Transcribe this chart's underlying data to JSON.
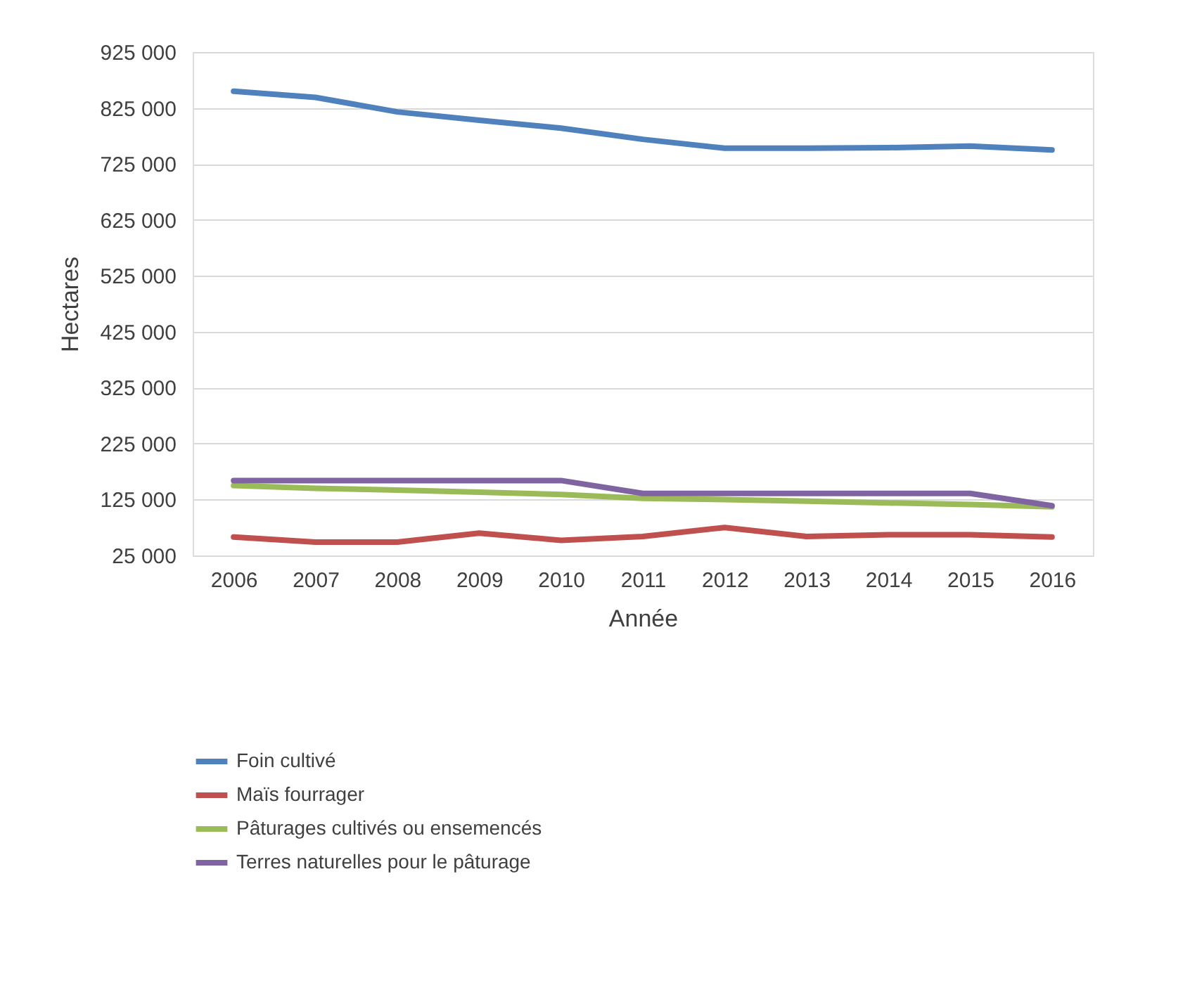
{
  "chart_data": {
    "type": "line",
    "xlabel": "Année",
    "ylabel": "Hectares",
    "categories": [
      "2006",
      "2007",
      "2008",
      "2009",
      "2010",
      "2011",
      "2012",
      "2013",
      "2014",
      "2015",
      "2016"
    ],
    "series": [
      {
        "name": "Foin cultivé",
        "color": "#4f81bd",
        "values": [
          855000,
          844000,
          818000,
          803000,
          789000,
          769000,
          753000,
          753000,
          754000,
          757000,
          750000
        ]
      },
      {
        "name": "Maïs fourrager",
        "color": "#c0504d",
        "values": [
          58000,
          49000,
          49000,
          65000,
          52000,
          59000,
          75000,
          59000,
          62000,
          62000,
          58000
        ]
      },
      {
        "name": "Pâturages cultivés ou ensemencés",
        "color": "#9bbb59",
        "values": [
          150000,
          145000,
          142000,
          138000,
          134000,
          127000,
          125000,
          122000,
          119000,
          116000,
          112000
        ]
      },
      {
        "name": "Terres naturelles pour le pâturage",
        "color": "#8064a2",
        "values": [
          159000,
          159000,
          159000,
          159000,
          159000,
          136000,
          136000,
          136000,
          136000,
          136000,
          114000
        ]
      }
    ],
    "ylim": [
      25000,
      925000
    ],
    "yticks": [
      {
        "value": 25000,
        "label": "25 000"
      },
      {
        "value": 125000,
        "label": "125 000"
      },
      {
        "value": 225000,
        "label": "225 000"
      },
      {
        "value": 325000,
        "label": "325 000"
      },
      {
        "value": 425000,
        "label": "425 000"
      },
      {
        "value": 525000,
        "label": "525 000"
      },
      {
        "value": 625000,
        "label": "625 000"
      },
      {
        "value": 725000,
        "label": "725 000"
      },
      {
        "value": 825000,
        "label": "825 000"
      },
      {
        "value": 925000,
        "label": "925 000"
      }
    ],
    "grid": "y",
    "legend": "bottom",
    "marker": "none",
    "line_style": "solid"
  }
}
